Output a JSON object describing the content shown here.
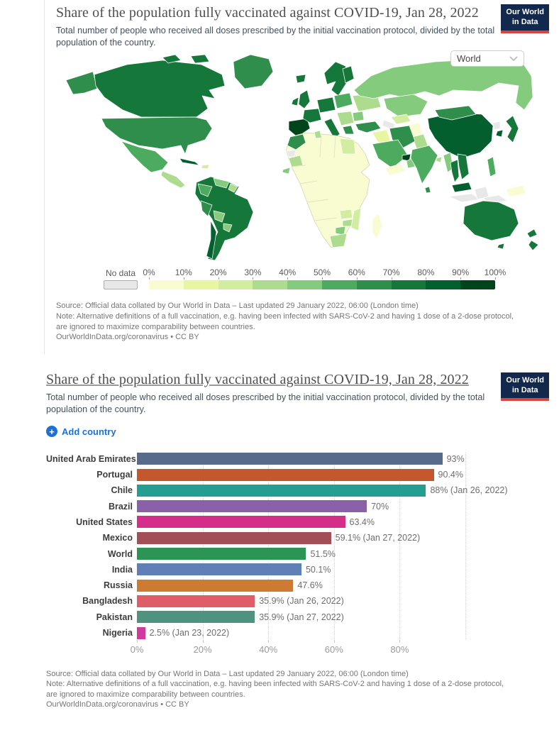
{
  "brand": {
    "line1": "Our World",
    "line2": "in Data",
    "bg": "#12294d",
    "accent": "#d7443e"
  },
  "chart_data": [
    {
      "type": "heatmap",
      "variant": "world-choropleth-map",
      "title": "Share of the population fully vaccinated against COVID-19, Jan 28, 2022",
      "subtitle": "Total number of people who received all doses prescribed by the initial vaccination protocol, divided by the total population of the country.",
      "region_dropdown_value": "World",
      "legend": {
        "no_data_label": "No data",
        "no_data_color": "#e8e8e8",
        "tick_labels": [
          "0%",
          "10%",
          "20%",
          "30%",
          "40%",
          "50%",
          "60%",
          "70%",
          "80%",
          "90%",
          "100%"
        ],
        "bin_ranges": [
          "0-10%",
          "10-20%",
          "20-30%",
          "30-40%",
          "40-50%",
          "50-60%",
          "60-70%",
          "70-80%",
          "80-90%",
          "90-100%"
        ],
        "bin_colors": [
          "#f9fbd0",
          "#e9f6a1",
          "#d3eda0",
          "#aedc8e",
          "#85cb7e",
          "#4cab5e",
          "#2f8e4b",
          "#15773a",
          "#03602e",
          "#00441b"
        ]
      },
      "region_bins": {
        "alaska": 6,
        "canada": 7,
        "arctic-islands-1": 7,
        "arctic-islands-2": 7,
        "greenland": 6,
        "usa": 6,
        "mexico": 5,
        "central-america": 3,
        "cuba": 8,
        "hispaniola": 2,
        "south-america": 7,
        "venezuela": 4,
        "guyana": 3,
        "colombia": 5,
        "peru": 6,
        "bolivia": 4,
        "paraguay": 4,
        "chile": 8,
        "iceland": 7,
        "scandinavia": 7,
        "finland": 7,
        "uk": 7,
        "ireland": 7,
        "iberia": 9,
        "france": 7,
        "germany": 7,
        "poland": 5,
        "italy": 7,
        "balkans": 3,
        "greece": 6,
        "ukraine": 3,
        "romania": 4,
        "russia": 4,
        "kazakhstan": 4,
        "uzbekistan": 2,
        "turkmenistan": -1,
        "afghanistan": 0,
        "pakistan": 3,
        "turkey": 6,
        "syria-iraq": 1,
        "iran": 6,
        "saudi-arabia": 5,
        "uae": 9,
        "yemen": 0,
        "oman": 4,
        "africa": 0,
        "morocco": 6,
        "western-sahara": -1,
        "mauritania": 3,
        "senegal": 4,
        "tunisia": 3,
        "egypt": 2,
        "zambia": 2,
        "zimbabwe": 3,
        "mozambique": 2,
        "botswana": 4,
        "south-africa": 3,
        "madagascar": 0,
        "china": 8,
        "mongolia": 6,
        "india": 5,
        "sri-lanka": 6,
        "bangladesh": 3,
        "myanmar": 4,
        "thailand": 7,
        "vietnam": 7,
        "malaysia": 8,
        "indonesia-west": -1,
        "indonesia-east": -1,
        "borneo": -1,
        "philippines": 5,
        "japan": 7,
        "south-korea": 8,
        "north-korea": -1,
        "papua-new-guinea": 0,
        "australia": 7,
        "tasmania": 7,
        "new-zealand-north": 7,
        "new-zealand-south": 7
      },
      "source": "Source: Official data collated by Our World in Data – Last updated 29 January 2022, 06:00 (London time)",
      "note_line1": "Note: Alternative definitions of a full vaccination, e.g. having been infected with SARS-CoV-2 and having 1 dose of a 2-dose protocol,",
      "note_line2": "are ignored to maximize comparability between countries.",
      "citation": "OurWorldInData.org/coronavirus • CC BY"
    },
    {
      "type": "bar",
      "orientation": "horizontal",
      "title": "Share of the population fully vaccinated against COVID-19, Jan 28, 2022",
      "subtitle": "Total number of people who received all doses prescribed by the initial vaccination protocol, divided by the total population of the country.",
      "add_country_label": "Add country",
      "add_country_accent": "#1d70d6",
      "categories": [
        "United Arab Emirates",
        "Portugal",
        "Chile",
        "Brazil",
        "United States",
        "Mexico",
        "World",
        "India",
        "Russia",
        "Bangladesh",
        "Pakistan",
        "Nigeria"
      ],
      "values": [
        93,
        90.4,
        88,
        70,
        63.4,
        59.1,
        51.5,
        50.1,
        47.6,
        35.9,
        35.9,
        2.5
      ],
      "value_labels": [
        "93%",
        "90.4%",
        "88% (Jan 26, 2022)",
        "70%",
        "63.4%",
        "59.1% (Jan 27, 2022)",
        "51.5%",
        "50.1%",
        "47.6%",
        "35.9% (Jan 26, 2022)",
        "35.9% (Jan 27, 2022)",
        "2.5% (Jan 23, 2022)"
      ],
      "bar_colors": [
        "#566b8a",
        "#c4572e",
        "#249e90",
        "#8a60a9",
        "#d42e8a",
        "#a24f58",
        "#2c9455",
        "#5e80b4",
        "#cd7b31",
        "#df5d67",
        "#4f9280",
        "#d03a9c"
      ],
      "xlim": [
        0,
        100
      ],
      "xtick_labels": [
        "0%",
        "20%",
        "40%",
        "60%",
        "80%"
      ],
      "xtick_values": [
        0,
        20,
        40,
        60,
        80
      ],
      "gridlines": "dotted-vertical",
      "source": "Source: Official data collated by Our World in Data – Last updated 29 January 2022, 06:00 (London time)",
      "note_line1": "Note: Alternative definitions of a full vaccination, e.g. having been infected with SARS-CoV-2 and having 1 dose of a 2-dose protocol,",
      "note_line2": "are ignored to maximize comparability between countries.",
      "citation": "OurWorldInData.org/coronavirus • CC BY"
    }
  ]
}
